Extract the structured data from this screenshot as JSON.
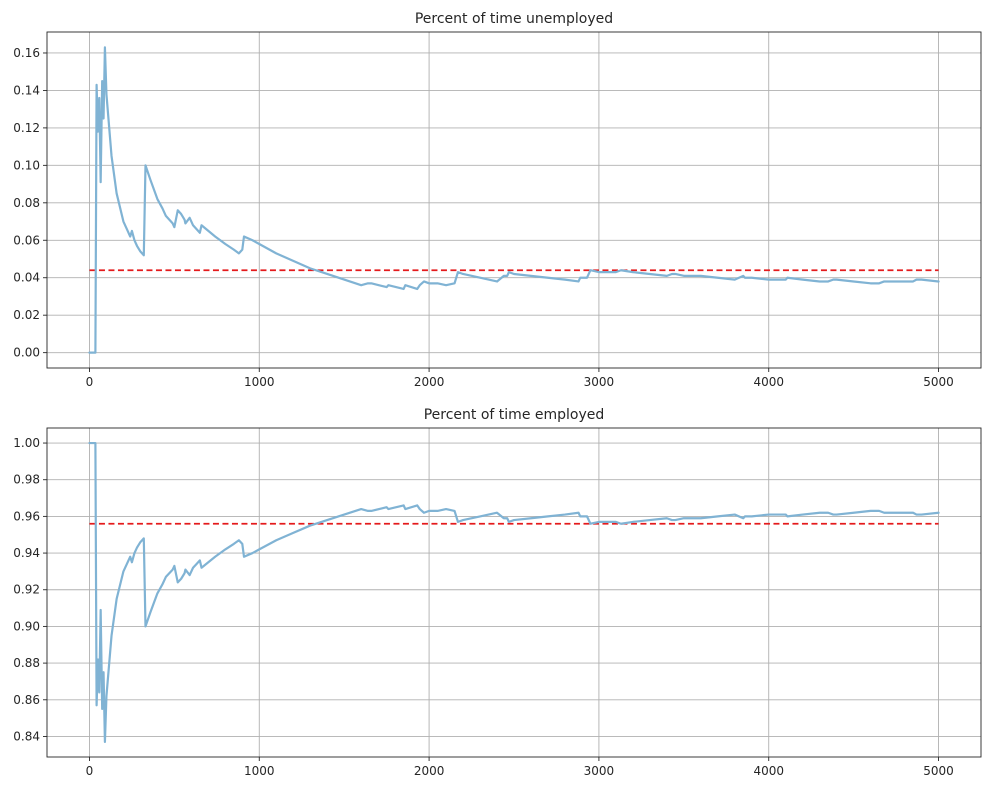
{
  "chart_data": [
    {
      "type": "line",
      "title": "Percent of time unemployed",
      "xlabel": "",
      "ylabel": "",
      "xlim": [
        -250,
        5250
      ],
      "ylim": [
        -0.0082,
        0.1712
      ],
      "xticks": [
        0,
        1000,
        2000,
        3000,
        4000,
        5000
      ],
      "xtick_labels": [
        "0",
        "1000",
        "2000",
        "3000",
        "4000",
        "5000"
      ],
      "yticks": [
        0.0,
        0.02,
        0.04,
        0.06,
        0.08,
        0.1,
        0.12,
        0.14,
        0.16
      ],
      "ytick_labels": [
        "0.00",
        "0.02",
        "0.04",
        "0.06",
        "0.08",
        "0.10",
        "0.12",
        "0.14",
        "0.16"
      ],
      "grid": true,
      "series_color": "#80b3d4",
      "reference_color": "#e41a1c",
      "reference_line": {
        "y": 0.044,
        "x_range": [
          0,
          5000
        ]
      },
      "series": [
        {
          "x": [
            0,
            30,
            35,
            42,
            50,
            58,
            66,
            75,
            83,
            91,
            100,
            130,
            160,
            200,
            240,
            250,
            265,
            280,
            300,
            320,
            330,
            360,
            400,
            430,
            450,
            470,
            490,
            500,
            520,
            540,
            560,
            565,
            590,
            610,
            630,
            650,
            660,
            700,
            740,
            800,
            850,
            880,
            900,
            910,
            960,
            1000,
            1100,
            1200,
            1300,
            1400,
            1500,
            1600,
            1640,
            1660,
            1750,
            1760,
            1850,
            1860,
            1930,
            1945,
            1970,
            2000,
            2050,
            2100,
            2150,
            2170,
            2200,
            2300,
            2400,
            2440,
            2460,
            2470,
            2500,
            2600,
            2700,
            2800,
            2880,
            2890,
            2930,
            2950,
            3000,
            3050,
            3100,
            3130,
            3200,
            3300,
            3400,
            3430,
            3450,
            3500,
            3600,
            3700,
            3800,
            3850,
            3860,
            3900,
            4000,
            4100,
            4110,
            4200,
            4300,
            4350,
            4380,
            4400,
            4500,
            4600,
            4650,
            4680,
            4700,
            4800,
            4850,
            4870,
            4900,
            5000
          ],
          "y": [
            0.0,
            0.0,
            0.0,
            0.143,
            0.118,
            0.136,
            0.091,
            0.145,
            0.125,
            0.163,
            0.138,
            0.105,
            0.085,
            0.07,
            0.062,
            0.065,
            0.06,
            0.057,
            0.054,
            0.052,
            0.1,
            0.092,
            0.082,
            0.077,
            0.073,
            0.071,
            0.069,
            0.067,
            0.076,
            0.074,
            0.071,
            0.069,
            0.072,
            0.068,
            0.066,
            0.064,
            0.068,
            0.065,
            0.062,
            0.058,
            0.055,
            0.053,
            0.055,
            0.062,
            0.06,
            0.058,
            0.053,
            0.049,
            0.045,
            0.042,
            0.039,
            0.036,
            0.037,
            0.037,
            0.035,
            0.036,
            0.034,
            0.036,
            0.034,
            0.036,
            0.038,
            0.037,
            0.037,
            0.036,
            0.037,
            0.043,
            0.042,
            0.04,
            0.038,
            0.041,
            0.041,
            0.043,
            0.042,
            0.041,
            0.04,
            0.039,
            0.038,
            0.04,
            0.04,
            0.044,
            0.043,
            0.043,
            0.043,
            0.044,
            0.043,
            0.042,
            0.041,
            0.042,
            0.042,
            0.041,
            0.041,
            0.04,
            0.039,
            0.041,
            0.04,
            0.04,
            0.039,
            0.039,
            0.04,
            0.039,
            0.038,
            0.038,
            0.039,
            0.039,
            0.038,
            0.037,
            0.037,
            0.038,
            0.038,
            0.038,
            0.038,
            0.039,
            0.039,
            0.038
          ]
        }
      ]
    },
    {
      "type": "line",
      "title": "Percent of time employed",
      "xlabel": "",
      "ylabel": "",
      "xlim": [
        -250,
        5250
      ],
      "ylim": [
        0.8288,
        1.0082
      ],
      "xticks": [
        0,
        1000,
        2000,
        3000,
        4000,
        5000
      ],
      "xtick_labels": [
        "0",
        "1000",
        "2000",
        "3000",
        "4000",
        "5000"
      ],
      "yticks": [
        0.84,
        0.86,
        0.88,
        0.9,
        0.92,
        0.94,
        0.96,
        0.98,
        1.0
      ],
      "ytick_labels": [
        "0.84",
        "0.86",
        "0.88",
        "0.90",
        "0.92",
        "0.94",
        "0.96",
        "0.98",
        "1.00"
      ],
      "grid": true,
      "series_color": "#80b3d4",
      "reference_color": "#e41a1c",
      "reference_line": {
        "y": 0.956,
        "x_range": [
          0,
          5000
        ]
      },
      "series": [
        {
          "x": [
            0,
            30,
            35,
            42,
            50,
            58,
            66,
            75,
            83,
            91,
            100,
            130,
            160,
            200,
            240,
            250,
            265,
            280,
            300,
            320,
            330,
            360,
            400,
            430,
            450,
            470,
            490,
            500,
            520,
            540,
            560,
            565,
            590,
            610,
            630,
            650,
            660,
            700,
            740,
            800,
            850,
            880,
            900,
            910,
            960,
            1000,
            1100,
            1200,
            1300,
            1400,
            1500,
            1600,
            1640,
            1660,
            1750,
            1760,
            1850,
            1860,
            1930,
            1945,
            1970,
            2000,
            2050,
            2100,
            2150,
            2170,
            2200,
            2300,
            2400,
            2440,
            2460,
            2470,
            2500,
            2600,
            2700,
            2800,
            2880,
            2890,
            2930,
            2950,
            3000,
            3050,
            3100,
            3130,
            3200,
            3300,
            3400,
            3430,
            3450,
            3500,
            3600,
            3700,
            3800,
            3850,
            3860,
            3900,
            4000,
            4100,
            4110,
            4200,
            4300,
            4350,
            4380,
            4400,
            4500,
            4600,
            4650,
            4680,
            4700,
            4800,
            4850,
            4870,
            4900,
            5000
          ],
          "y": [
            1.0,
            1.0,
            1.0,
            0.857,
            0.882,
            0.864,
            0.909,
            0.855,
            0.875,
            0.837,
            0.862,
            0.895,
            0.915,
            0.93,
            0.938,
            0.935,
            0.94,
            0.943,
            0.946,
            0.948,
            0.9,
            0.908,
            0.918,
            0.923,
            0.927,
            0.929,
            0.931,
            0.933,
            0.924,
            0.926,
            0.929,
            0.931,
            0.928,
            0.932,
            0.934,
            0.936,
            0.932,
            0.935,
            0.938,
            0.942,
            0.945,
            0.947,
            0.945,
            0.938,
            0.94,
            0.942,
            0.947,
            0.951,
            0.955,
            0.958,
            0.961,
            0.964,
            0.963,
            0.963,
            0.965,
            0.964,
            0.966,
            0.964,
            0.966,
            0.964,
            0.962,
            0.963,
            0.963,
            0.964,
            0.963,
            0.957,
            0.958,
            0.96,
            0.962,
            0.959,
            0.959,
            0.957,
            0.958,
            0.959,
            0.96,
            0.961,
            0.962,
            0.96,
            0.96,
            0.956,
            0.957,
            0.957,
            0.957,
            0.956,
            0.957,
            0.958,
            0.959,
            0.958,
            0.958,
            0.959,
            0.959,
            0.96,
            0.961,
            0.959,
            0.96,
            0.96,
            0.961,
            0.961,
            0.96,
            0.961,
            0.962,
            0.962,
            0.961,
            0.961,
            0.962,
            0.963,
            0.963,
            0.962,
            0.962,
            0.962,
            0.962,
            0.961,
            0.961,
            0.962
          ]
        }
      ]
    }
  ]
}
